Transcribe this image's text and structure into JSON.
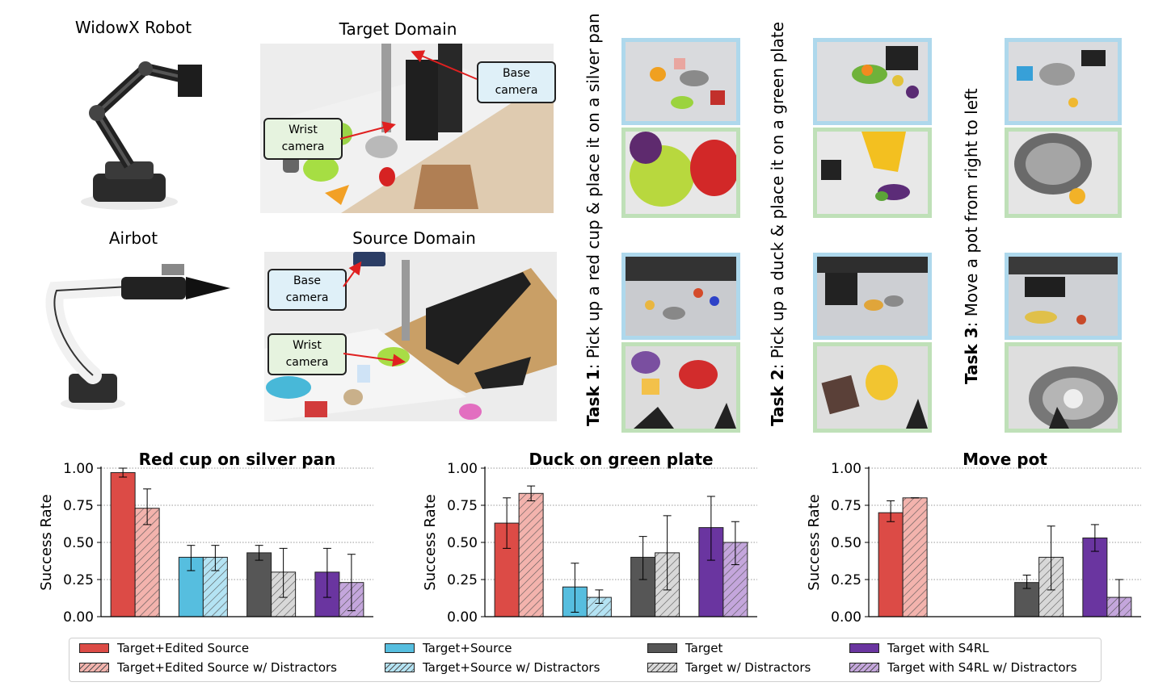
{
  "figure": {
    "robots": {
      "widowx_label": "WidowX Robot",
      "airbot_label": "Airbot"
    },
    "domains": {
      "target_label": "Target Domain",
      "source_label": "Source Domain",
      "base_camera": "Base\ncamera",
      "wrist_camera": "Wrist\ncamera"
    },
    "tasks": [
      {
        "bold": "Task 1",
        "rest": ": Pick up a red cup & place it on a silver pan"
      },
      {
        "bold": "Task 2",
        "rest": ": Pick up a duck & place it on a green plate"
      },
      {
        "bold": "Task 3",
        "rest": ": Move a pot from right to left"
      }
    ]
  },
  "colors": {
    "red": "#dc4b46",
    "red_light": "#f3b3ad",
    "blue": "#56bedf",
    "blue_light": "#b4e3f3",
    "gray": "#565656",
    "gray_light": "#d8d8d8",
    "purple": "#6a35a0",
    "purple_light": "#c4a6dc",
    "base_border": "#aed8ec",
    "wrist_border": "#bfe0b8",
    "callout_base_fill": "#dff0f8",
    "callout_wrist_fill": "#e6f3df",
    "arrow_red": "#e02020"
  },
  "legend": [
    {
      "label": "Target+Edited Source",
      "key": "red",
      "hatched": false
    },
    {
      "label": "Target+Edited Source w/ Distractors",
      "key": "red_light",
      "hatched": true
    },
    {
      "label": "Target+Source",
      "key": "blue",
      "hatched": false
    },
    {
      "label": "Target+Source w/ Distractors",
      "key": "blue_light",
      "hatched": true
    },
    {
      "label": "Target",
      "key": "gray",
      "hatched": false
    },
    {
      "label": "Target w/ Distractors",
      "key": "gray_light",
      "hatched": true
    },
    {
      "label": "Target with S4RL",
      "key": "purple",
      "hatched": false
    },
    {
      "label": "Target with S4RL w/ Distractors",
      "key": "purple_light",
      "hatched": true
    }
  ],
  "chart_data": [
    {
      "type": "bar",
      "title": "Red cup on silver pan",
      "ylabel": "Success Rate",
      "ylim": [
        0,
        1
      ],
      "yticks": [
        "0.00",
        "0.25",
        "0.50",
        "0.75",
        "1.00"
      ],
      "grid": "horizontal dotted",
      "series": [
        {
          "name": "Target+Edited Source",
          "values": [
            0.97
          ],
          "err_low": [
            0.94
          ],
          "err_high": [
            1.0
          ]
        },
        {
          "name": "Target+Edited Source w/ Distractors",
          "values": [
            0.73
          ],
          "err_low": [
            0.62
          ],
          "err_high": [
            0.86
          ]
        },
        {
          "name": "Target+Source",
          "values": [
            0.4
          ],
          "err_low": [
            0.31
          ],
          "err_high": [
            0.48
          ]
        },
        {
          "name": "Target+Source w/ Distractors",
          "values": [
            0.4
          ],
          "err_low": [
            0.31
          ],
          "err_high": [
            0.48
          ]
        },
        {
          "name": "Target",
          "values": [
            0.43
          ],
          "err_low": [
            0.38
          ],
          "err_high": [
            0.48
          ]
        },
        {
          "name": "Target w/ Distractors",
          "values": [
            0.3
          ],
          "err_low": [
            0.13
          ],
          "err_high": [
            0.46
          ]
        },
        {
          "name": "Target with S4RL",
          "values": [
            0.3
          ],
          "err_low": [
            0.13
          ],
          "err_high": [
            0.46
          ]
        },
        {
          "name": "Target with S4RL w/ Distractors",
          "values": [
            0.23
          ],
          "err_low": [
            0.04
          ],
          "err_high": [
            0.42
          ]
        }
      ]
    },
    {
      "type": "bar",
      "title": "Duck on green plate",
      "ylabel": "Success Rate",
      "ylim": [
        0,
        1
      ],
      "yticks": [
        "0.00",
        "0.25",
        "0.50",
        "0.75",
        "1.00"
      ],
      "grid": "horizontal dotted",
      "series": [
        {
          "name": "Target+Edited Source",
          "values": [
            0.63
          ],
          "err_low": [
            0.46
          ],
          "err_high": [
            0.8
          ]
        },
        {
          "name": "Target+Edited Source w/ Distractors",
          "values": [
            0.83
          ],
          "err_low": [
            0.78
          ],
          "err_high": [
            0.88
          ]
        },
        {
          "name": "Target+Source",
          "values": [
            0.2
          ],
          "err_low": [
            0.03
          ],
          "err_high": [
            0.36
          ]
        },
        {
          "name": "Target+Source w/ Distractors",
          "values": [
            0.13
          ],
          "err_low": [
            0.09
          ],
          "err_high": [
            0.18
          ]
        },
        {
          "name": "Target",
          "values": [
            0.4
          ],
          "err_low": [
            0.25
          ],
          "err_high": [
            0.54
          ]
        },
        {
          "name": "Target w/ Distractors",
          "values": [
            0.43
          ],
          "err_low": [
            0.18
          ],
          "err_high": [
            0.68
          ]
        },
        {
          "name": "Target with S4RL",
          "values": [
            0.6
          ],
          "err_low": [
            0.38
          ],
          "err_high": [
            0.81
          ]
        },
        {
          "name": "Target with S4RL w/ Distractors",
          "values": [
            0.5
          ],
          "err_low": [
            0.35
          ],
          "err_high": [
            0.64
          ]
        }
      ]
    },
    {
      "type": "bar",
      "title": "Move pot",
      "ylabel": "Success Rate",
      "ylim": [
        0,
        1
      ],
      "yticks": [
        "0.00",
        "0.25",
        "0.50",
        "0.75",
        "1.00"
      ],
      "grid": "horizontal dotted",
      "series": [
        {
          "name": "Target+Edited Source",
          "values": [
            0.7
          ],
          "err_low": [
            0.64
          ],
          "err_high": [
            0.78
          ]
        },
        {
          "name": "Target+Edited Source w/ Distractors",
          "values": [
            0.8
          ],
          "err_low": [
            0.8
          ],
          "err_high": [
            0.8
          ]
        },
        {
          "name": "Target+Source",
          "values": [
            0
          ],
          "err_low": [
            0
          ],
          "err_high": [
            0
          ]
        },
        {
          "name": "Target+Source w/ Distractors",
          "values": [
            0
          ],
          "err_low": [
            0
          ],
          "err_high": [
            0
          ]
        },
        {
          "name": "Target",
          "values": [
            0.23
          ],
          "err_low": [
            0.19
          ],
          "err_high": [
            0.28
          ]
        },
        {
          "name": "Target w/ Distractors",
          "values": [
            0.4
          ],
          "err_low": [
            0.18
          ],
          "err_high": [
            0.61
          ]
        },
        {
          "name": "Target with S4RL",
          "values": [
            0.53
          ],
          "err_low": [
            0.44
          ],
          "err_high": [
            0.62
          ]
        },
        {
          "name": "Target with S4RL w/ Distractors",
          "values": [
            0.13
          ],
          "err_low": [
            0.0
          ],
          "err_high": [
            0.25
          ]
        }
      ]
    }
  ]
}
